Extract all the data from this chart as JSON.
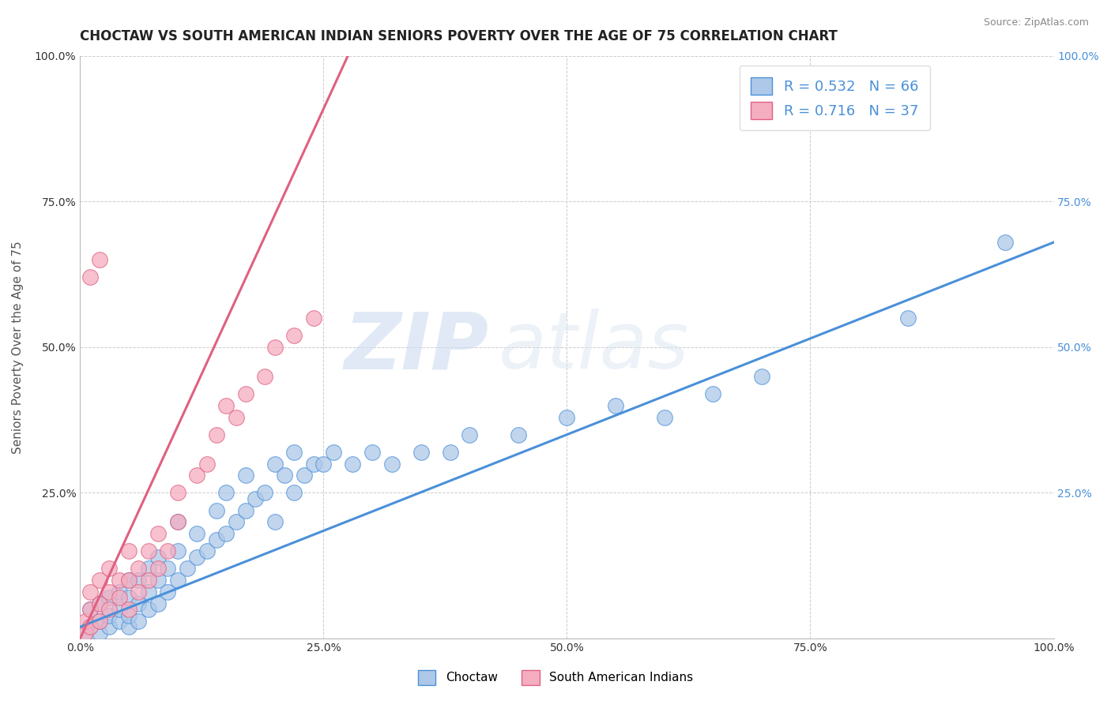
{
  "title": "CHOCTAW VS SOUTH AMERICAN INDIAN SENIORS POVERTY OVER THE AGE OF 75 CORRELATION CHART",
  "source": "Source: ZipAtlas.com",
  "ylabel": "Seniors Poverty Over the Age of 75",
  "xlim": [
    0,
    1
  ],
  "ylim": [
    0,
    1
  ],
  "xticks": [
    0.0,
    0.25,
    0.5,
    0.75,
    1.0
  ],
  "yticks": [
    0.0,
    0.25,
    0.5,
    0.75,
    1.0
  ],
  "xtick_labels": [
    "0.0%",
    "25.0%",
    "50.0%",
    "75.0%",
    "100.0%"
  ],
  "ytick_labels_left": [
    "",
    "25.0%",
    "50.0%",
    "75.0%",
    "100.0%"
  ],
  "ytick_labels_right": [
    "",
    "25.0%",
    "50.0%",
    "75.0%",
    "100.0%"
  ],
  "blue_R": 0.532,
  "blue_N": 66,
  "pink_R": 0.716,
  "pink_N": 37,
  "blue_color": "#adc8e8",
  "pink_color": "#f5adc0",
  "blue_line_color": "#4a90d9",
  "pink_line_color": "#e06080",
  "watermark_zip": "ZIP",
  "watermark_atlas": "atlas",
  "legend_label_blue": "Choctaw",
  "legend_label_pink": "South American Indians",
  "blue_scatter_x": [
    0.005,
    0.01,
    0.01,
    0.02,
    0.02,
    0.02,
    0.03,
    0.03,
    0.03,
    0.04,
    0.04,
    0.04,
    0.05,
    0.05,
    0.05,
    0.05,
    0.06,
    0.06,
    0.06,
    0.07,
    0.07,
    0.07,
    0.08,
    0.08,
    0.08,
    0.09,
    0.09,
    0.1,
    0.1,
    0.1,
    0.11,
    0.12,
    0.12,
    0.13,
    0.14,
    0.14,
    0.15,
    0.15,
    0.16,
    0.17,
    0.17,
    0.18,
    0.19,
    0.2,
    0.2,
    0.21,
    0.22,
    0.22,
    0.23,
    0.24,
    0.25,
    0.26,
    0.28,
    0.3,
    0.32,
    0.35,
    0.38,
    0.4,
    0.45,
    0.5,
    0.55,
    0.6,
    0.65,
    0.7,
    0.85,
    0.95
  ],
  "blue_scatter_y": [
    0.01,
    0.02,
    0.05,
    0.01,
    0.03,
    0.06,
    0.02,
    0.04,
    0.07,
    0.03,
    0.05,
    0.08,
    0.02,
    0.04,
    0.07,
    0.1,
    0.03,
    0.06,
    0.1,
    0.05,
    0.08,
    0.12,
    0.06,
    0.1,
    0.14,
    0.08,
    0.12,
    0.1,
    0.15,
    0.2,
    0.12,
    0.14,
    0.18,
    0.15,
    0.17,
    0.22,
    0.18,
    0.25,
    0.2,
    0.22,
    0.28,
    0.24,
    0.25,
    0.2,
    0.3,
    0.28,
    0.25,
    0.32,
    0.28,
    0.3,
    0.3,
    0.32,
    0.3,
    0.32,
    0.3,
    0.32,
    0.32,
    0.35,
    0.35,
    0.38,
    0.4,
    0.38,
    0.42,
    0.45,
    0.55,
    0.68
  ],
  "pink_scatter_x": [
    0.005,
    0.005,
    0.01,
    0.01,
    0.01,
    0.02,
    0.02,
    0.02,
    0.03,
    0.03,
    0.03,
    0.04,
    0.04,
    0.05,
    0.05,
    0.05,
    0.06,
    0.06,
    0.07,
    0.07,
    0.08,
    0.08,
    0.09,
    0.1,
    0.1,
    0.12,
    0.13,
    0.14,
    0.15,
    0.16,
    0.17,
    0.19,
    0.2,
    0.22,
    0.24,
    0.01,
    0.02
  ],
  "pink_scatter_y": [
    0.01,
    0.03,
    0.02,
    0.05,
    0.08,
    0.03,
    0.06,
    0.1,
    0.05,
    0.08,
    0.12,
    0.07,
    0.1,
    0.05,
    0.1,
    0.15,
    0.08,
    0.12,
    0.1,
    0.15,
    0.12,
    0.18,
    0.15,
    0.2,
    0.25,
    0.28,
    0.3,
    0.35,
    0.4,
    0.38,
    0.42,
    0.45,
    0.5,
    0.52,
    0.55,
    0.62,
    0.65
  ],
  "blue_trend_x": [
    0.0,
    1.0
  ],
  "blue_trend_y": [
    0.02,
    0.68
  ],
  "pink_trend_x": [
    0.0,
    0.275
  ],
  "pink_trend_y": [
    0.0,
    1.0
  ],
  "grid_color": "#cccccc",
  "background_color": "#ffffff",
  "title_fontsize": 12,
  "axis_label_fontsize": 11,
  "tick_fontsize": 10,
  "legend_fontsize": 13,
  "blue_text_color": "#4a90d9",
  "dark_text_color": "#333333"
}
